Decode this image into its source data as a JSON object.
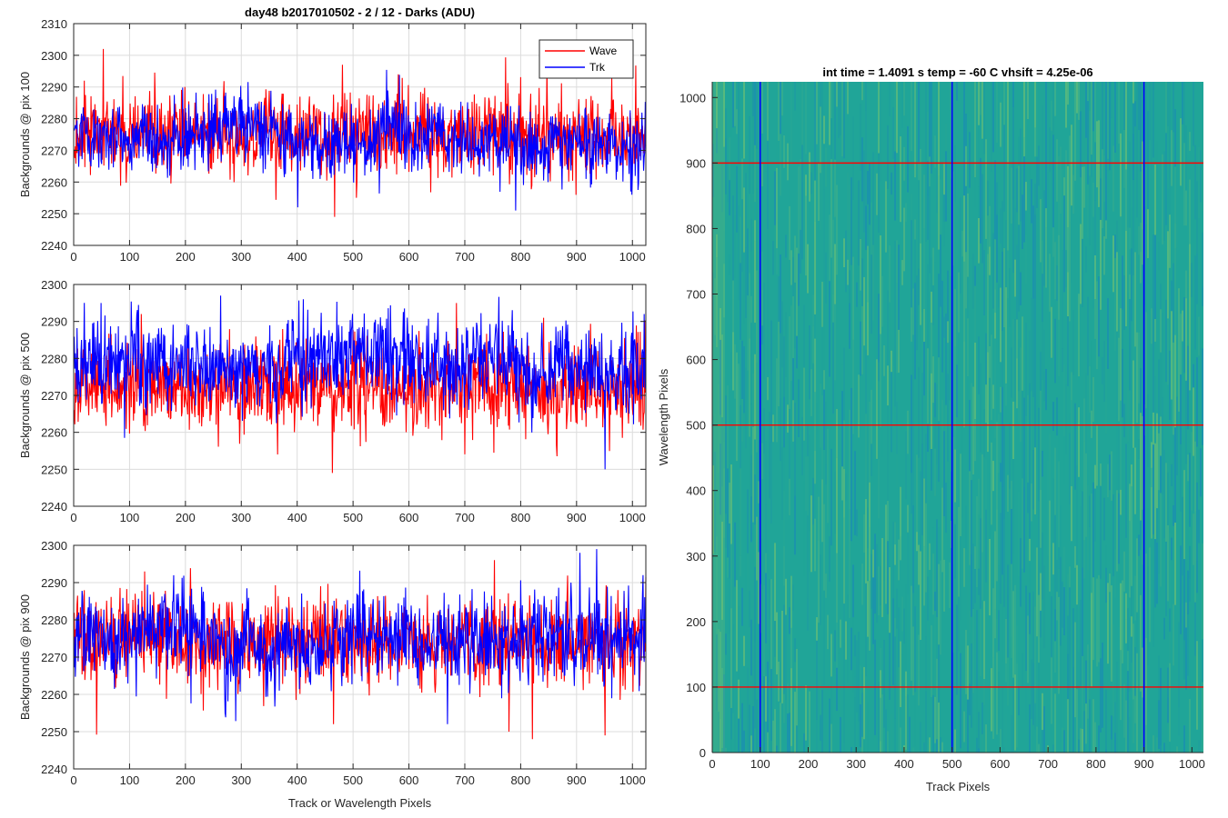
{
  "figure_title": "day48 b2017010502 - 2 / 12 - Darks (ADU)",
  "legend": {
    "wave_label": "Wave",
    "trk_label": "Trk",
    "location": "top-right"
  },
  "colors": {
    "wave": "#ff0000",
    "trk": "#0000ff",
    "image_base": "#20a598",
    "image_light": "#7cc76e",
    "image_dark": "#1583bd"
  },
  "chart_data": [
    {
      "type": "line",
      "title": "day48 b2017010502 - 2 / 12 - Darks (ADU)",
      "xlabel": "",
      "ylabel": "Backgrounds @ pix 100",
      "xlim": [
        0,
        1024
      ],
      "ylim": [
        2240,
        2310
      ],
      "xticks": [
        0,
        100,
        200,
        300,
        400,
        500,
        600,
        700,
        800,
        900,
        1000
      ],
      "yticks": [
        2240,
        2250,
        2260,
        2270,
        2280,
        2290,
        2300,
        2310
      ],
      "grid": true,
      "series": [
        {
          "name": "Wave",
          "color": "#ff0000",
          "mean": 2275,
          "std": 6.5,
          "spikes": [
            [
              52,
              2302
            ],
            [
              480,
              2297
            ],
            [
              18,
              2292
            ],
            [
              466,
              2249
            ],
            [
              580,
              2294
            ]
          ]
        },
        {
          "name": "Trk",
          "color": "#0000ff",
          "mean": 2274,
          "std": 5.5,
          "spikes": [
            [
              790,
              2251
            ],
            [
              998,
              2256
            ],
            [
              400,
              2252
            ]
          ]
        }
      ]
    },
    {
      "type": "line",
      "xlabel": "",
      "ylabel": "Backgrounds @ pix 500",
      "xlim": [
        0,
        1024
      ],
      "ylim": [
        2240,
        2300
      ],
      "xticks": [
        0,
        100,
        200,
        300,
        400,
        500,
        600,
        700,
        800,
        900,
        1000
      ],
      "yticks": [
        2240,
        2250,
        2260,
        2270,
        2280,
        2290,
        2300
      ],
      "grid": true,
      "series": [
        {
          "name": "Wave",
          "color": "#ff0000",
          "mean": 2272,
          "std": 6,
          "spikes": [
            [
              462,
              2249
            ],
            [
              684,
              2295
            ],
            [
              120,
              2292
            ],
            [
              840,
              2291
            ]
          ]
        },
        {
          "name": "Trk",
          "color": "#0000ff",
          "mean": 2276,
          "std": 6,
          "spikes": [
            [
              410,
              2296
            ],
            [
              262,
              2297
            ],
            [
              48,
              2295
            ],
            [
              950,
              2250
            ],
            [
              1020,
              2292
            ]
          ]
        }
      ]
    },
    {
      "type": "line",
      "xlabel": "Track or Wavelength Pixels",
      "ylabel": "Backgrounds @ pix 900",
      "xlim": [
        0,
        1024
      ],
      "ylim": [
        2240,
        2300
      ],
      "xticks": [
        0,
        100,
        200,
        300,
        400,
        500,
        600,
        700,
        800,
        900,
        1000
      ],
      "yticks": [
        2240,
        2250,
        2260,
        2270,
        2280,
        2290,
        2300
      ],
      "grid": true,
      "series": [
        {
          "name": "Wave",
          "color": "#ff0000",
          "mean": 2274,
          "std": 6,
          "spikes": [
            [
              820,
              2248
            ],
            [
              778,
              2250
            ],
            [
              950,
              2249
            ],
            [
              126,
              2293
            ],
            [
              464,
              2252
            ]
          ]
        },
        {
          "name": "Trk",
          "color": "#0000ff",
          "mean": 2275,
          "std": 6,
          "spikes": [
            [
              668,
              2252
            ],
            [
              935,
              2299
            ],
            [
              905,
              2298
            ],
            [
              1018,
              2292
            ]
          ]
        }
      ]
    },
    {
      "type": "heatmap",
      "title": "int time = 1.4091 s    temp = -60 C    vhsift = 4.25e-06",
      "xlabel": "Track Pixels",
      "ylabel": "Wavelength Pixels",
      "xlim": [
        0,
        1024
      ],
      "ylim": [
        0,
        1024
      ],
      "xticks": [
        0,
        100,
        200,
        300,
        400,
        500,
        600,
        700,
        800,
        900,
        1000
      ],
      "yticks": [
        0,
        100,
        200,
        300,
        400,
        500,
        600,
        700,
        800,
        900,
        1000
      ],
      "vertical_lines": [
        100,
        500,
        900
      ],
      "horizontal_lines": [
        100,
        500,
        900
      ],
      "vertical_line_color": "#0000ff",
      "horizontal_line_color": "#ff0000"
    }
  ]
}
